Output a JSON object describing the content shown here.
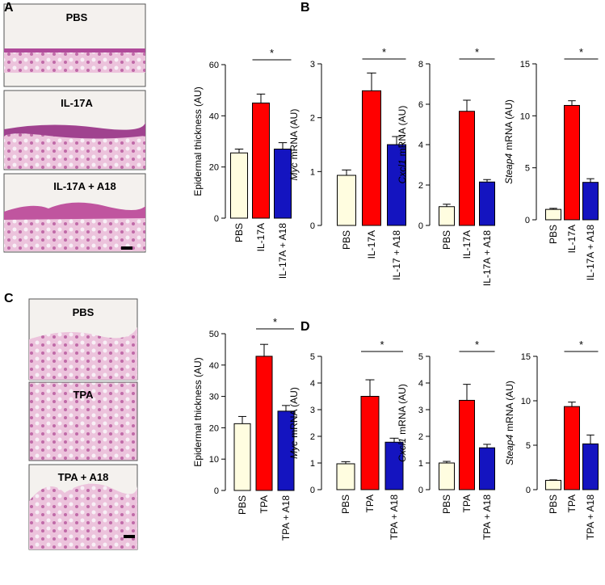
{
  "figure": {
    "panel_labels": [
      "A",
      "B",
      "C",
      "D"
    ],
    "image_labels": [
      "PBS",
      "IL-17A",
      "IL-17A + A18",
      "PBS",
      "TPA",
      "TPA + A18"
    ]
  },
  "chart_data": [
    {
      "type": "bar",
      "ylabel": "Epidermal thickness (AU)",
      "categories": [
        "PBS",
        "IL-17A",
        "IL-17A + A18"
      ],
      "values": [
        25.5,
        45,
        27
      ],
      "errors": [
        1.5,
        3.5,
        2.5
      ],
      "colors": [
        "#fffde0",
        "#ff0000",
        "#1414c0"
      ],
      "ylim": [
        0,
        60
      ],
      "yticks": [
        0,
        20,
        40,
        60
      ],
      "annotation": "*"
    },
    {
      "type": "bar",
      "ylabel_italic": "Myc",
      "ylabel": "mRNA (AU)",
      "categories": [
        "PBS",
        "IL-17A",
        "IL-17 + A18"
      ],
      "values": [
        0.93,
        2.5,
        1.5
      ],
      "errors": [
        0.1,
        0.33,
        0.15
      ],
      "colors": [
        "#fffde0",
        "#ff0000",
        "#1414c0"
      ],
      "ylim": [
        0,
        3
      ],
      "yticks": [
        0,
        1,
        2,
        3
      ],
      "annotation": "*"
    },
    {
      "type": "bar",
      "ylabel_italic": "Cxcl1",
      "ylabel": "mRNA (AU)",
      "categories": [
        "PBS",
        "IL-17A",
        "IL-17A + A18"
      ],
      "values": [
        0.93,
        5.65,
        2.15
      ],
      "errors": [
        0.12,
        0.55,
        0.12
      ],
      "colors": [
        "#fffde0",
        "#ff0000",
        "#1414c0"
      ],
      "ylim": [
        0,
        8
      ],
      "yticks": [
        0,
        2,
        4,
        6,
        8
      ],
      "annotation": "*"
    },
    {
      "type": "bar",
      "ylabel_italic": "Steap4",
      "ylabel": "mRNA (AU)",
      "categories": [
        "PBS",
        "IL-17A",
        "IL-17A + A18"
      ],
      "values": [
        1.0,
        11.0,
        3.6
      ],
      "errors": [
        0.1,
        0.45,
        0.35
      ],
      "colors": [
        "#fffde0",
        "#ff0000",
        "#1414c0"
      ],
      "ylim": [
        0,
        15
      ],
      "yticks": [
        0,
        5,
        10,
        15
      ],
      "annotation": "*"
    },
    {
      "type": "bar",
      "ylabel": "Epidermal thickness (AU)",
      "categories": [
        "PBS",
        "TPA",
        "TPA + A18"
      ],
      "values": [
        21.3,
        42.8,
        25.3
      ],
      "errors": [
        2.3,
        3.8,
        1.8
      ],
      "colors": [
        "#fffde0",
        "#ff0000",
        "#1414c0"
      ],
      "ylim": [
        0,
        50
      ],
      "yticks": [
        0,
        10,
        20,
        30,
        40,
        50
      ],
      "annotation": "*"
    },
    {
      "type": "bar",
      "ylabel_italic": "Myc",
      "ylabel": "mRNA (AU)",
      "categories": [
        "PBS",
        "TPA",
        "TPA + A18"
      ],
      "values": [
        0.97,
        3.5,
        1.78
      ],
      "errors": [
        0.08,
        0.62,
        0.15
      ],
      "colors": [
        "#fffde0",
        "#ff0000",
        "#1414c0"
      ],
      "ylim": [
        0,
        5
      ],
      "yticks": [
        0,
        1,
        2,
        3,
        4,
        5
      ],
      "annotation": "*"
    },
    {
      "type": "bar",
      "ylabel_italic": "Cxcl1",
      "ylabel": "mRNA (AU)",
      "categories": [
        "PBS",
        "TPA",
        "TPA + A18"
      ],
      "values": [
        1.0,
        3.35,
        1.57
      ],
      "errors": [
        0.06,
        0.6,
        0.13
      ],
      "colors": [
        "#fffde0",
        "#ff0000",
        "#1414c0"
      ],
      "ylim": [
        0,
        5
      ],
      "yticks": [
        0,
        1,
        2,
        3,
        4,
        5
      ],
      "annotation": "*"
    },
    {
      "type": "bar",
      "ylabel_italic": "Steap4",
      "ylabel": "mRNA (AU)",
      "categories": [
        "PBS",
        "TPA",
        "TPA + A18"
      ],
      "values": [
        1.05,
        9.35,
        5.15
      ],
      "errors": [
        0.05,
        0.5,
        1.0
      ],
      "colors": [
        "#fffde0",
        "#ff0000",
        "#1414c0"
      ],
      "ylim": [
        0,
        15
      ],
      "yticks": [
        0,
        5,
        10,
        15
      ],
      "annotation": "*"
    }
  ]
}
